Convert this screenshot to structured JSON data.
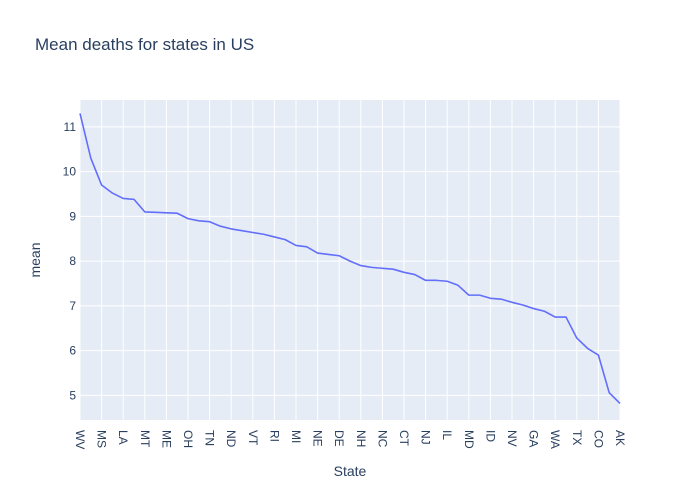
{
  "chart_data": {
    "type": "line",
    "title": "Mean deaths for states in US",
    "xlabel": "State",
    "ylabel": "mean",
    "ylim": [
      4.45,
      11.6
    ],
    "grid": true,
    "line_color": "#636efa",
    "background_color": "#e5ecf6",
    "categories": [
      "WV",
      "",
      "MS",
      "",
      "LA",
      "",
      "MT",
      "",
      "ME",
      "",
      "OH",
      "",
      "TN",
      "",
      "ND",
      "",
      "VT",
      "",
      "RI",
      "",
      "MI",
      "",
      "NE",
      "",
      "DE",
      "",
      "NH",
      "",
      "NC",
      "",
      "CT",
      "",
      "NJ",
      "",
      "IL",
      "",
      "MD",
      "",
      "ID",
      "",
      "NV",
      "",
      "GA",
      "",
      "WA",
      "",
      "TX",
      "",
      "CO",
      "",
      "AK"
    ],
    "values": [
      11.3,
      10.3,
      9.7,
      9.52,
      9.4,
      9.38,
      9.1,
      9.09,
      9.08,
      9.07,
      8.95,
      8.9,
      8.88,
      8.78,
      8.72,
      8.68,
      8.64,
      8.6,
      8.54,
      8.48,
      8.35,
      8.32,
      8.18,
      8.15,
      8.12,
      8.0,
      7.9,
      7.86,
      7.84,
      7.82,
      7.75,
      7.7,
      7.57,
      7.57,
      7.55,
      7.46,
      7.24,
      7.24,
      7.17,
      7.15,
      7.08,
      7.02,
      6.94,
      6.88,
      6.75,
      6.75,
      6.28,
      6.05,
      5.9,
      5.06,
      4.82
    ],
    "yticks": [
      5,
      6,
      7,
      8,
      9,
      10,
      11
    ]
  }
}
